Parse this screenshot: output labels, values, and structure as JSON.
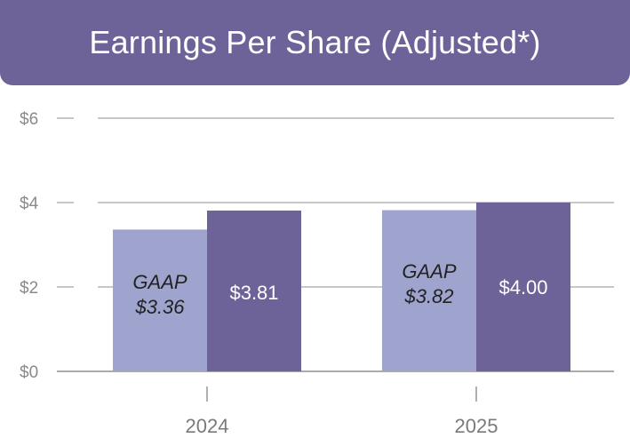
{
  "title": "Earnings Per Share (Adjusted*)",
  "colors": {
    "banner": "#6e6399",
    "gaap_bar": "#9fa4cf",
    "adjusted_bar": "#6e6399",
    "gridline": "#a8a8a8",
    "axis": "#8f8f8f"
  },
  "chart_data": {
    "type": "bar",
    "title": "Earnings Per Share (Adjusted*)",
    "categories": [
      "2024",
      "2025"
    ],
    "series": [
      {
        "name": "GAAP",
        "values": [
          3.36,
          3.82
        ],
        "labels": [
          [
            "GAAP",
            "$3.36"
          ],
          [
            "GAAP",
            "$3.82"
          ]
        ]
      },
      {
        "name": "Adjusted",
        "values": [
          3.81,
          4.0
        ],
        "labels": [
          [
            "$3.81"
          ],
          [
            "$4.00"
          ]
        ]
      }
    ],
    "yticks": [
      "$0",
      "$2",
      "$4",
      "$6"
    ],
    "ytick_values": [
      0,
      2,
      4,
      6
    ],
    "ylim": [
      0,
      6
    ],
    "xlabel": "",
    "ylabel": "",
    "grid": true
  }
}
